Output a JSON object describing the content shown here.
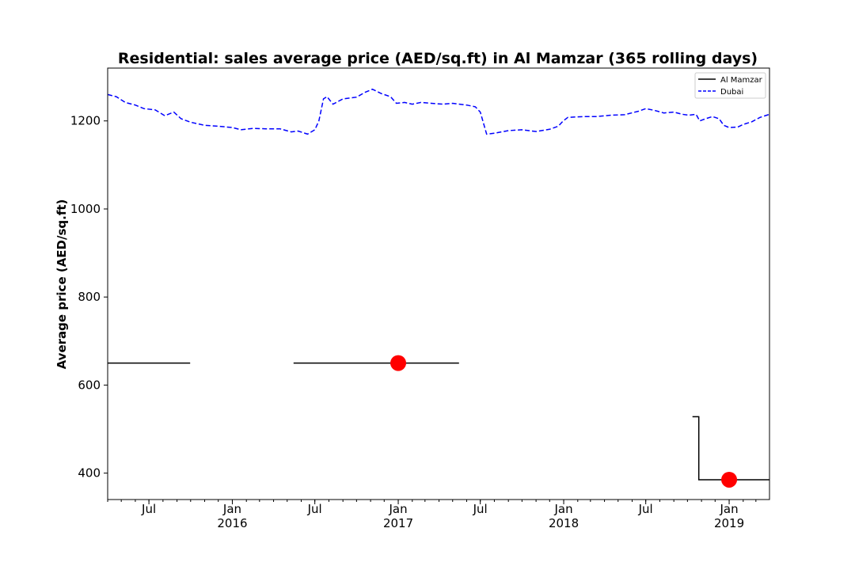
{
  "chart_data": {
    "type": "line",
    "title": "Residential: sales average price (AED/sq.ft) in Al Mamzar (365 rolling days)",
    "xlabel": "",
    "ylabel": "Average price (AED/sq.ft)",
    "xlim": [
      "2015-04-01",
      "2019-03-31"
    ],
    "ylim": [
      340,
      1320
    ],
    "grid": false,
    "legend_position": "top-right",
    "x_ticks": [
      {
        "date": "2015-07-01",
        "label": "Jul",
        "sublabel": ""
      },
      {
        "date": "2016-01-01",
        "label": "Jan",
        "sublabel": "2016"
      },
      {
        "date": "2016-07-01",
        "label": "Jul",
        "sublabel": ""
      },
      {
        "date": "2017-01-01",
        "label": "Jan",
        "sublabel": "2017"
      },
      {
        "date": "2017-07-01",
        "label": "Jul",
        "sublabel": ""
      },
      {
        "date": "2018-01-01",
        "label": "Jan",
        "sublabel": "2018"
      },
      {
        "date": "2018-07-01",
        "label": "Jul",
        "sublabel": ""
      },
      {
        "date": "2019-01-01",
        "label": "Jan",
        "sublabel": "2019"
      }
    ],
    "y_ticks": [
      400,
      600,
      800,
      1000,
      1200
    ],
    "series": [
      {
        "name": "Al Mamzar",
        "color": "#000000",
        "style": "solid",
        "segments": [
          [
            [
              "2015-04-01",
              650
            ],
            [
              "2015-09-30",
              650
            ]
          ],
          [
            [
              "2016-05-15",
              650
            ],
            [
              "2017-05-15",
              650
            ]
          ],
          [
            [
              "2018-10-12",
              528
            ],
            [
              "2018-10-26",
              528
            ],
            [
              "2018-10-26",
              385
            ],
            [
              "2019-03-31",
              385
            ]
          ]
        ]
      },
      {
        "name": "Dubai",
        "color": "#0000ff",
        "style": "dashed",
        "points": [
          [
            "2015-04-01",
            1260
          ],
          [
            "2015-04-20",
            1255
          ],
          [
            "2015-05-10",
            1242
          ],
          [
            "2015-06-01",
            1236
          ],
          [
            "2015-06-20",
            1228
          ],
          [
            "2015-07-15",
            1225
          ],
          [
            "2015-08-05",
            1212
          ],
          [
            "2015-08-25",
            1220
          ],
          [
            "2015-09-10",
            1205
          ],
          [
            "2015-10-01",
            1197
          ],
          [
            "2015-11-01",
            1190
          ],
          [
            "2015-12-01",
            1188
          ],
          [
            "2016-01-01",
            1185
          ],
          [
            "2016-01-20",
            1180
          ],
          [
            "2016-02-15",
            1183
          ],
          [
            "2016-03-15",
            1182
          ],
          [
            "2016-04-15",
            1182
          ],
          [
            "2016-05-10",
            1175
          ],
          [
            "2016-05-25",
            1177
          ],
          [
            "2016-06-15",
            1170
          ],
          [
            "2016-07-01",
            1180
          ],
          [
            "2016-07-10",
            1200
          ],
          [
            "2016-07-20",
            1250
          ],
          [
            "2016-07-28",
            1255
          ],
          [
            "2016-08-10",
            1238
          ],
          [
            "2016-09-01",
            1250
          ],
          [
            "2016-10-01",
            1254
          ],
          [
            "2016-10-20",
            1265
          ],
          [
            "2016-11-05",
            1272
          ],
          [
            "2016-11-25",
            1262
          ],
          [
            "2016-12-15",
            1255
          ],
          [
            "2016-12-28",
            1240
          ],
          [
            "2017-01-15",
            1242
          ],
          [
            "2017-02-01",
            1238
          ],
          [
            "2017-02-20",
            1242
          ],
          [
            "2017-03-15",
            1240
          ],
          [
            "2017-04-10",
            1238
          ],
          [
            "2017-05-01",
            1240
          ],
          [
            "2017-06-01",
            1236
          ],
          [
            "2017-06-20",
            1232
          ],
          [
            "2017-07-01",
            1220
          ],
          [
            "2017-07-08",
            1195
          ],
          [
            "2017-07-15",
            1170
          ],
          [
            "2017-08-01",
            1172
          ],
          [
            "2017-09-01",
            1178
          ],
          [
            "2017-10-01",
            1180
          ],
          [
            "2017-11-01",
            1176
          ],
          [
            "2017-12-01",
            1181
          ],
          [
            "2017-12-20",
            1188
          ],
          [
            "2017-12-31",
            1200
          ],
          [
            "2018-01-10",
            1208
          ],
          [
            "2018-02-15",
            1210
          ],
          [
            "2018-03-15",
            1210
          ],
          [
            "2018-04-15",
            1213
          ],
          [
            "2018-05-15",
            1214
          ],
          [
            "2018-06-15",
            1222
          ],
          [
            "2018-07-01",
            1228
          ],
          [
            "2018-07-20",
            1224
          ],
          [
            "2018-08-10",
            1218
          ],
          [
            "2018-09-01",
            1220
          ],
          [
            "2018-09-20",
            1215
          ],
          [
            "2018-10-05",
            1213
          ],
          [
            "2018-10-20",
            1215
          ],
          [
            "2018-10-28",
            1200
          ],
          [
            "2018-11-10",
            1205
          ],
          [
            "2018-11-25",
            1210
          ],
          [
            "2018-12-10",
            1205
          ],
          [
            "2018-12-20",
            1190
          ],
          [
            "2019-01-01",
            1185
          ],
          [
            "2019-01-20",
            1186
          ],
          [
            "2019-02-01",
            1192
          ],
          [
            "2019-02-20",
            1198
          ],
          [
            "2019-03-10",
            1208
          ],
          [
            "2019-03-31",
            1215
          ]
        ]
      }
    ],
    "markers": [
      {
        "date": "2017-01-01",
        "value": 650,
        "color": "#ff0000"
      },
      {
        "date": "2019-01-01",
        "value": 385,
        "color": "#ff0000"
      }
    ]
  }
}
